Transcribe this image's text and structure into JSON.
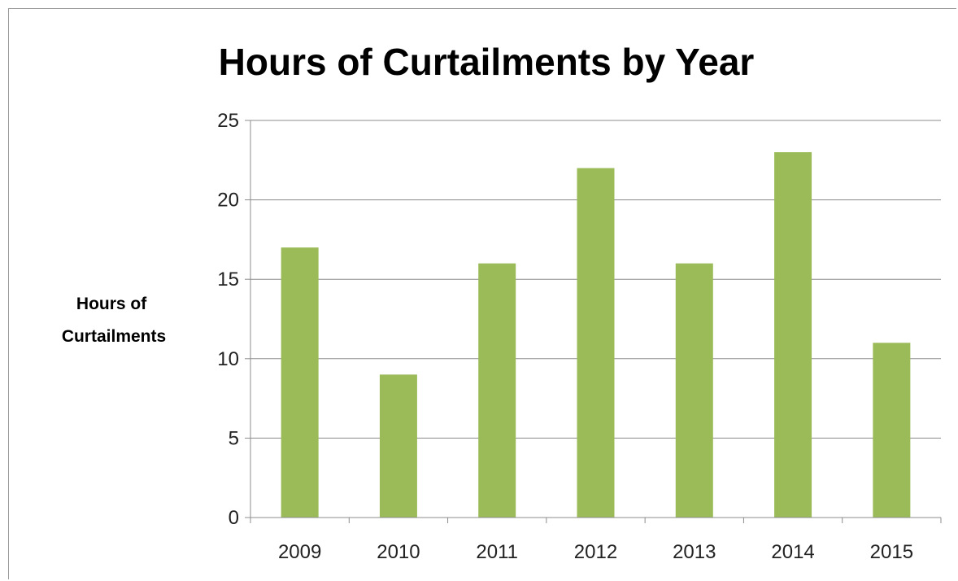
{
  "chart_data": {
    "type": "bar",
    "title": "Hours of Curtailments by Year",
    "xlabel": "",
    "ylabel_lines": [
      "Hours of",
      "Curtailments"
    ],
    "categories": [
      "2009",
      "2010",
      "2011",
      "2012",
      "2013",
      "2014",
      "2015"
    ],
    "values": [
      17,
      9,
      16,
      22,
      16,
      23,
      11
    ],
    "ylim": [
      0,
      25
    ],
    "yticks": [
      "0",
      "5",
      "10",
      "15",
      "20",
      "25"
    ],
    "ytick_values": [
      0,
      5,
      10,
      15,
      20,
      25
    ],
    "grid": true,
    "legend": "none",
    "bar_color": "#9bbb59"
  }
}
